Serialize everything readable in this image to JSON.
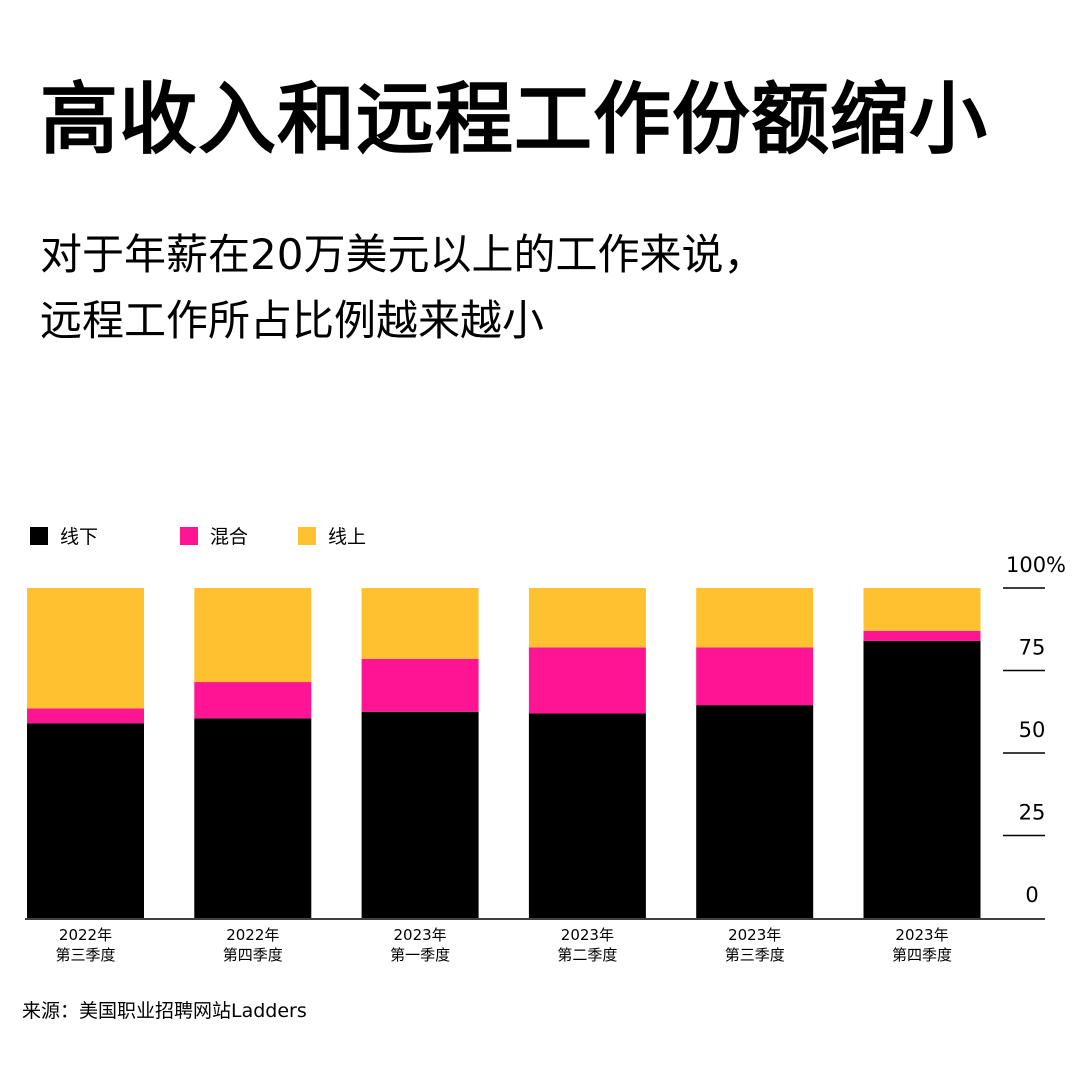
{
  "title": "高收入和远程工作份额缩小",
  "subtitle": {
    "line1": "对于年薪在20万美元以上的工作来说，",
    "line2": "远程工作所占比例越来越小"
  },
  "source": "来源：美国职业招聘网站Ladders",
  "colors": {
    "offline": "#000000",
    "hybrid": "#ff1493",
    "online": "#ffc12f"
  },
  "chart_data": {
    "type": "bar",
    "stacked": true,
    "categories": [
      [
        "2022年",
        "第三季度"
      ],
      [
        "2022年",
        "第四季度"
      ],
      [
        "2023年",
        "第一季度"
      ],
      [
        "2023年",
        "第二季度"
      ],
      [
        "2023年",
        "第三季度"
      ],
      [
        "2023年",
        "第四季度"
      ]
    ],
    "series": [
      {
        "name": "线下",
        "key": "offline",
        "values": [
          59,
          60.5,
          62.5,
          62,
          64.5,
          84
        ]
      },
      {
        "name": "混合",
        "key": "hybrid",
        "values": [
          4.5,
          11,
          16,
          20,
          17.5,
          3
        ]
      },
      {
        "name": "线上",
        "key": "online",
        "values": [
          36.5,
          28.5,
          21.5,
          18,
          18,
          13
        ]
      }
    ],
    "yaxis": {
      "ticks": [
        0,
        25,
        50,
        75,
        100
      ],
      "tick_labels": [
        "0",
        "25",
        "50",
        "75",
        "100%"
      ],
      "position": "right"
    },
    "ylim": [
      0,
      100
    ],
    "legend": "top-left"
  }
}
